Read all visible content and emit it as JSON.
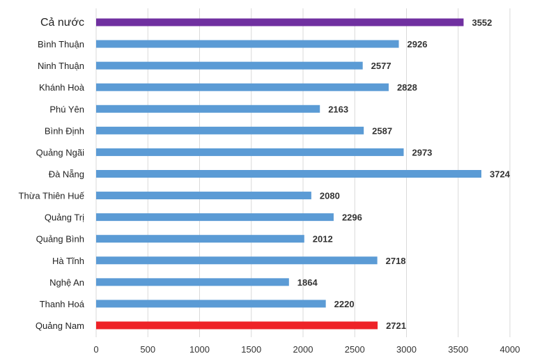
{
  "chart_data": {
    "type": "bar",
    "orientation": "horizontal",
    "categories": [
      "Cả nước",
      "Bình Thuận",
      "Ninh Thuận",
      "Khánh Hoà",
      "Phú Yên",
      "Bình Định",
      "Quảng Ngãi",
      "Đà Nẵng",
      "Thừa Thiên Huế",
      "Quảng Trị",
      "Quảng Bình",
      "Hà Tĩnh",
      "Nghệ An",
      "Thanh Hoá",
      "Quảng Nam"
    ],
    "values": [
      3552,
      2926,
      2577,
      2828,
      2163,
      2587,
      2973,
      3724,
      2080,
      2296,
      2012,
      2718,
      1864,
      2220,
      2721
    ],
    "bar_colors": [
      "#7030a0",
      "#5b9bd5",
      "#5b9bd5",
      "#5b9bd5",
      "#5b9bd5",
      "#5b9bd5",
      "#5b9bd5",
      "#5b9bd5",
      "#5b9bd5",
      "#5b9bd5",
      "#5b9bd5",
      "#5b9bd5",
      "#5b9bd5",
      "#5b9bd5",
      "#ee2227"
    ],
    "xlim": [
      0,
      4000
    ],
    "xticks": [
      0,
      500,
      1000,
      1500,
      2000,
      2500,
      3000,
      3500,
      4000
    ],
    "grid": true,
    "data_labels": true,
    "title": "",
    "xlabel": "",
    "ylabel": ""
  }
}
